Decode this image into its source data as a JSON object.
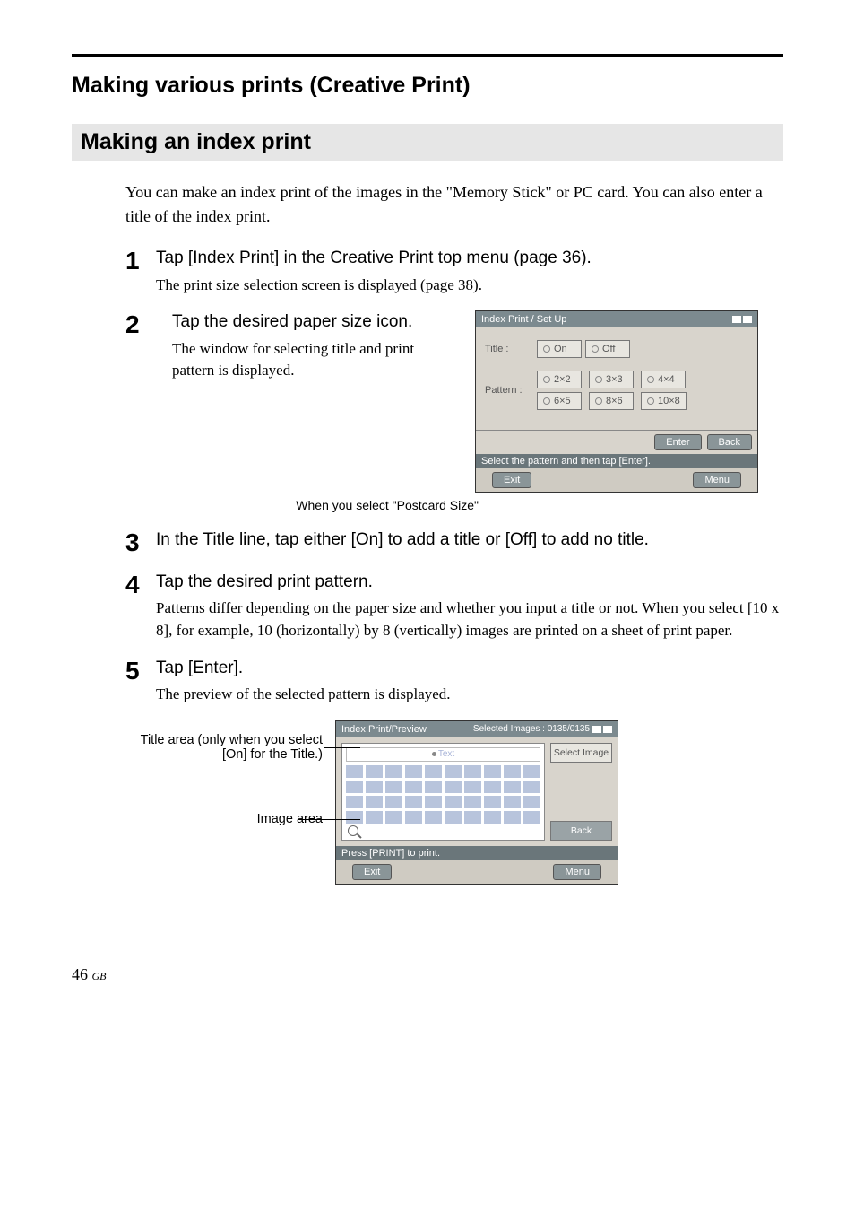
{
  "chapter_title": "Making various prints (Creative Print)",
  "section_title": "Making an index print",
  "intro": "You can make an index print of the images in the \"Memory Stick\" or PC card. You can also enter a title of the index print.",
  "steps": [
    {
      "num": "1",
      "head": "Tap [Index Print] in the Creative Print top menu (page 36).",
      "desc": "The print size selection screen is displayed (page 38)."
    },
    {
      "num": "2",
      "head": "Tap the desired paper size icon.",
      "desc": "The window for selecting title and print pattern is displayed."
    },
    {
      "num": "3",
      "head": "In the Title line, tap either [On] to add a title or [Off] to add no title.",
      "desc": ""
    },
    {
      "num": "4",
      "head": "Tap the desired print pattern.",
      "desc": "Patterns differ depending on the paper size and whether you input a title or not. When you select [10 x 8], for example, 10 (horizontally) by 8 (vertically) images are printed on a sheet of print paper."
    },
    {
      "num": "5",
      "head": "Tap [Enter].",
      "desc": "The preview of the selected pattern is displayed."
    }
  ],
  "caption_step2": "When you select \"Postcard Size\"",
  "mock1": {
    "title": "Index Print / Set Up",
    "title_label": "Title :",
    "title_options": [
      "On",
      "Off"
    ],
    "pattern_label": "Pattern :",
    "pattern_options": [
      "2×2",
      "3×3",
      "4×4",
      "6×5",
      "8×6",
      "10×8"
    ],
    "enter": "Enter",
    "back": "Back",
    "status": "Select the pattern and then tap [Enter].",
    "exit": "Exit",
    "menu": "Menu"
  },
  "annotations": {
    "title_area": "Title area (only when you select [On] for the Title.)",
    "image_area": "Image area"
  },
  "mock2": {
    "title": "Index Print/Preview",
    "selected": "Selected Images : 0135/0135",
    "text_placeholder": "Text",
    "select_image": "Select Image",
    "back": "Back",
    "status": "Press [PRINT] to print.",
    "exit": "Exit",
    "menu": "Menu",
    "grid_cols": 10,
    "grid_rows": 4
  },
  "page_number": "46",
  "page_region": "GB"
}
